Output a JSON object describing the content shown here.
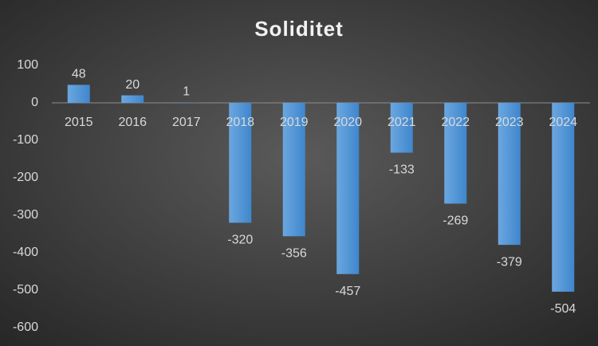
{
  "chart_data": {
    "type": "bar",
    "title": "Soliditet",
    "categories": [
      "2015",
      "2016",
      "2017",
      "2018",
      "2019",
      "2020",
      "2021",
      "2022",
      "2023",
      "2024"
    ],
    "values": [
      48,
      20,
      1,
      -320,
      -356,
      -457,
      -133,
      -269,
      -379,
      -504
    ],
    "color": "#5b9bd5",
    "ylim": [
      -600,
      100
    ],
    "yticks": [
      -600,
      -500,
      -400,
      -300,
      -200,
      -100,
      0,
      100
    ],
    "grid": false
  }
}
